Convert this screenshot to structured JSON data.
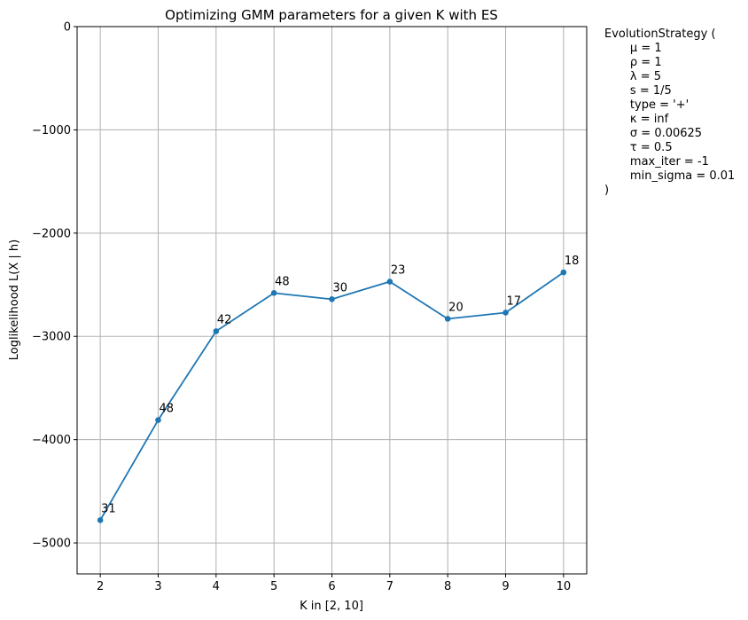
{
  "chart_data": {
    "type": "line",
    "title": "Optimizing GMM parameters for a given K with ES",
    "xlabel": "K in [2, 10]",
    "ylabel": "Loglikelihood L(X | h)",
    "x": [
      2,
      3,
      4,
      5,
      6,
      7,
      8,
      9,
      10
    ],
    "xlim": [
      1.6,
      10.4
    ],
    "ylim": [
      -5300,
      0
    ],
    "xticks": [
      2,
      3,
      4,
      5,
      6,
      7,
      8,
      9,
      10
    ],
    "yticks": [
      0,
      -1000,
      -2000,
      -3000,
      -4000,
      -5000
    ],
    "ytick_labels": [
      "0",
      "−1000",
      "−2000",
      "−3000",
      "−4000",
      "−5000"
    ],
    "grid": true,
    "series": [
      {
        "values": [
          -4780,
          -3810,
          -2950,
          -2580,
          -2640,
          -2470,
          -2830,
          -2770,
          -2380
        ],
        "point_labels": [
          "31",
          "48",
          "42",
          "48",
          "30",
          "23",
          "20",
          "17",
          "18"
        ],
        "color": "#1f77b4"
      }
    ],
    "side_note": "EvolutionStrategy (\n       μ = 1\n       ρ = 1\n       λ = 5\n       s = 1/5\n       type = '+'\n       κ = inf\n       σ = 0.00625\n       τ = 0.5\n       max_iter = -1\n       min_sigma = 0.01\n)"
  }
}
